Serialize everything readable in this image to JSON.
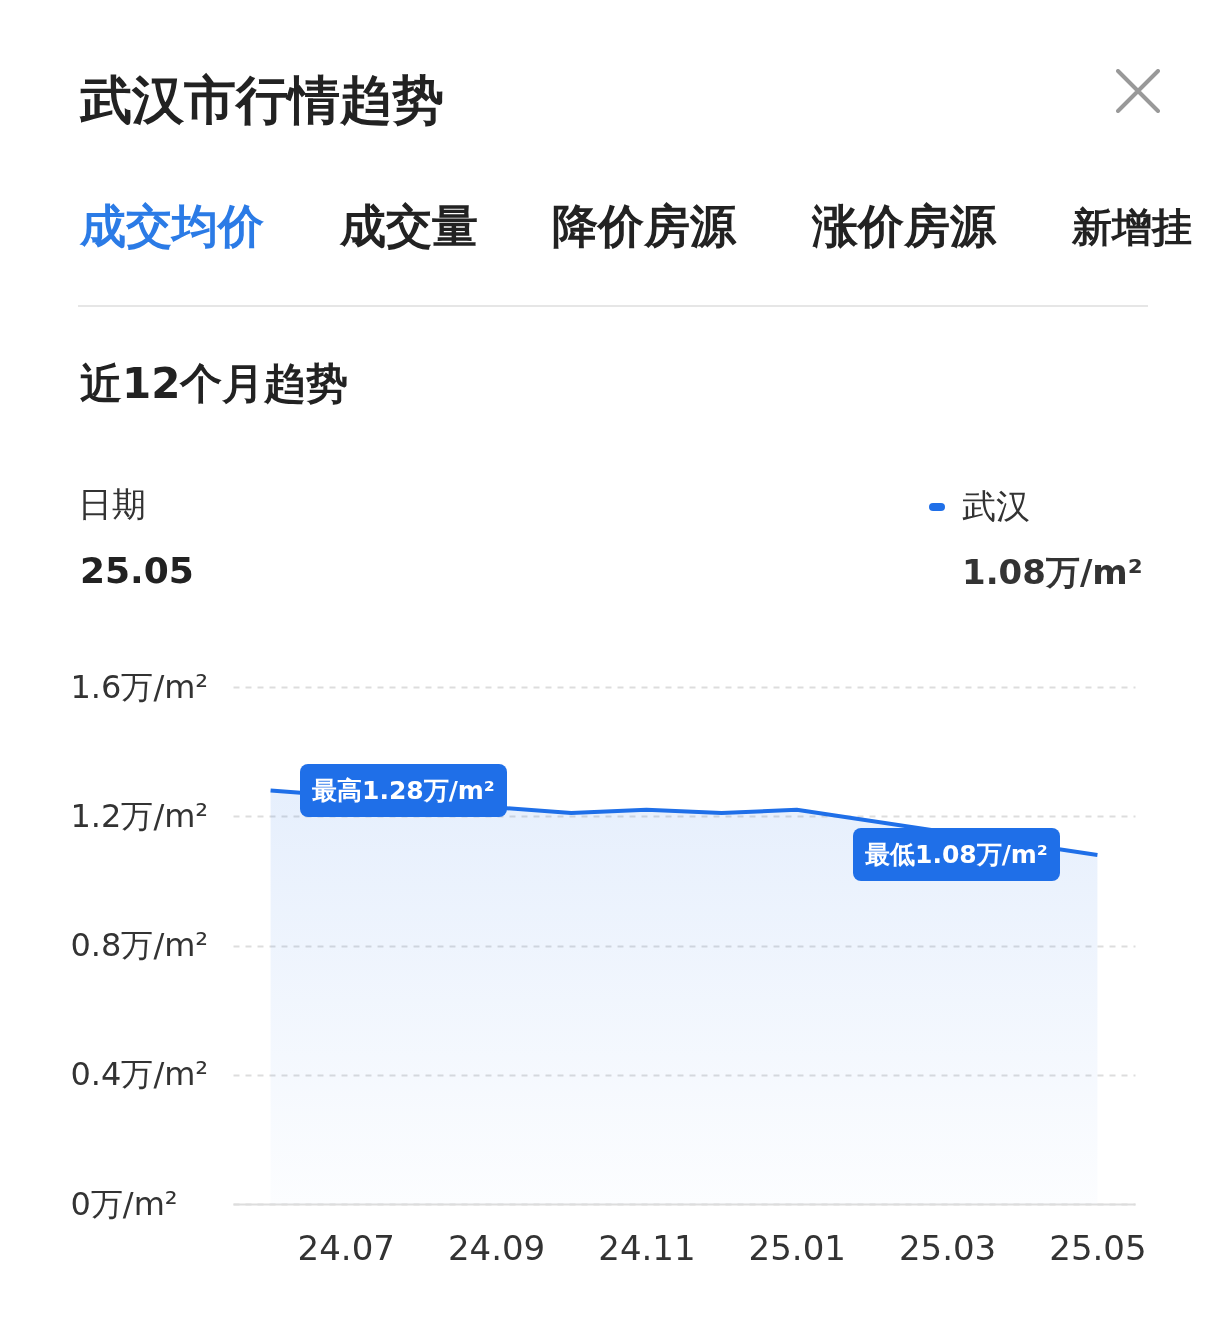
{
  "chart_data": {
    "type": "area",
    "title": "武汉市行情趋势",
    "subtitle": "近12个月趋势",
    "categories": [
      null,
      "24.07",
      null,
      "24.09",
      null,
      "24.11",
      null,
      "25.01",
      null,
      "25.03",
      null,
      "25.05"
    ],
    "series": [
      {
        "name": "武汉",
        "color": "#1f6fe8",
        "values": [
          1.28,
          null,
          null,
          null,
          1.21,
          1.22,
          1.21,
          1.22,
          null,
          null,
          null,
          1.08
        ]
      }
    ],
    "ylim": [
      0,
      1.6
    ],
    "yticks": [
      {
        "value": 0,
        "label": "0万/m²"
      },
      {
        "value": 0.4,
        "label": "0.4万/m²"
      },
      {
        "value": 0.8,
        "label": "0.8万/m²"
      },
      {
        "value": 1.2,
        "label": "1.2万/m²"
      },
      {
        "value": 1.6,
        "label": "1.6万/m²"
      }
    ],
    "grid": "y",
    "legend": "top right",
    "annotations": [
      "成交均价",
      "成交量",
      "降价房源",
      "涨价房源",
      "新增挂",
      "日期",
      "25.05",
      "1.08万/m²",
      "最高1.28万/m²",
      "最低1.08万/m²"
    ]
  }
}
